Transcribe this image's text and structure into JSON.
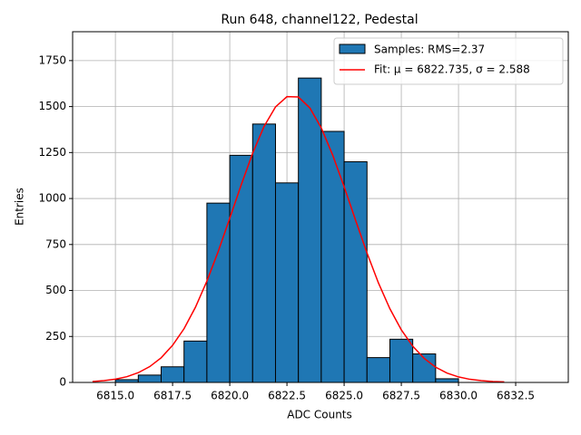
{
  "chart_data": {
    "type": "histogram",
    "title": "Run 648, channel122, Pedestal",
    "x_label": "ADC Counts",
    "y_label": "Entries",
    "name": "Samples: RMS=2.37",
    "color": "#1f77b4",
    "bins": [
      6815,
      6816,
      6817,
      6818,
      6819,
      6820,
      6821,
      6822,
      6823,
      6824,
      6825,
      6826,
      6827,
      6828,
      6829,
      6830,
      6831,
      6832,
      6833,
      6834
    ],
    "values": [
      15,
      40,
      85,
      225,
      975,
      1235,
      1405,
      1085,
      1655,
      1365,
      1200,
      135,
      235,
      155,
      20,
      0,
      0,
      0,
      0
    ],
    "fit": {
      "name": "Fit: μ = 6822.735, σ = 2.588",
      "color": "#ff0000",
      "x": [
        6814,
        6814.5,
        6815,
        6815.5,
        6816,
        6816.5,
        6817,
        6817.5,
        6818,
        6818.5,
        6819,
        6819.5,
        6820,
        6820.5,
        6821,
        6821.5,
        6822,
        6822.5,
        6823,
        6823.5,
        6824,
        6824.5,
        6825,
        6825.5,
        6826,
        6826.5,
        6827,
        6827.5,
        6828,
        6828.5,
        6829,
        6829.5,
        6830,
        6830.5,
        6831,
        6831.5,
        6832
      ],
      "values": [
        5,
        10,
        18,
        31,
        53,
        86,
        134,
        202,
        292,
        409,
        551,
        714,
        893,
        1074,
        1246,
        1392,
        1498,
        1554,
        1552,
        1493,
        1384,
        1236,
        1064,
        882,
        704,
        541,
        401,
        286,
        197,
        131,
        83,
        51,
        30,
        17,
        10,
        5,
        3
      ]
    },
    "xlim": [
      6813.13,
      6834.8
    ],
    "ylim": [
      0,
      1907
    ],
    "xticks": [
      {
        "value": 6815,
        "label": "6815.0"
      },
      {
        "value": 6817.5,
        "label": "6817.5"
      },
      {
        "value": 6820,
        "label": "6820.0"
      },
      {
        "value": 6822.5,
        "label": "6822.5"
      },
      {
        "value": 6825,
        "label": "6825.0"
      },
      {
        "value": 6827.5,
        "label": "6827.5"
      },
      {
        "value": 6830,
        "label": "6830.0"
      },
      {
        "value": 6832.5,
        "label": "6832.5"
      }
    ],
    "yticks": [
      0,
      250,
      500,
      750,
      1000,
      1250,
      1500,
      1750
    ],
    "grid": true,
    "legend": "upper right"
  }
}
